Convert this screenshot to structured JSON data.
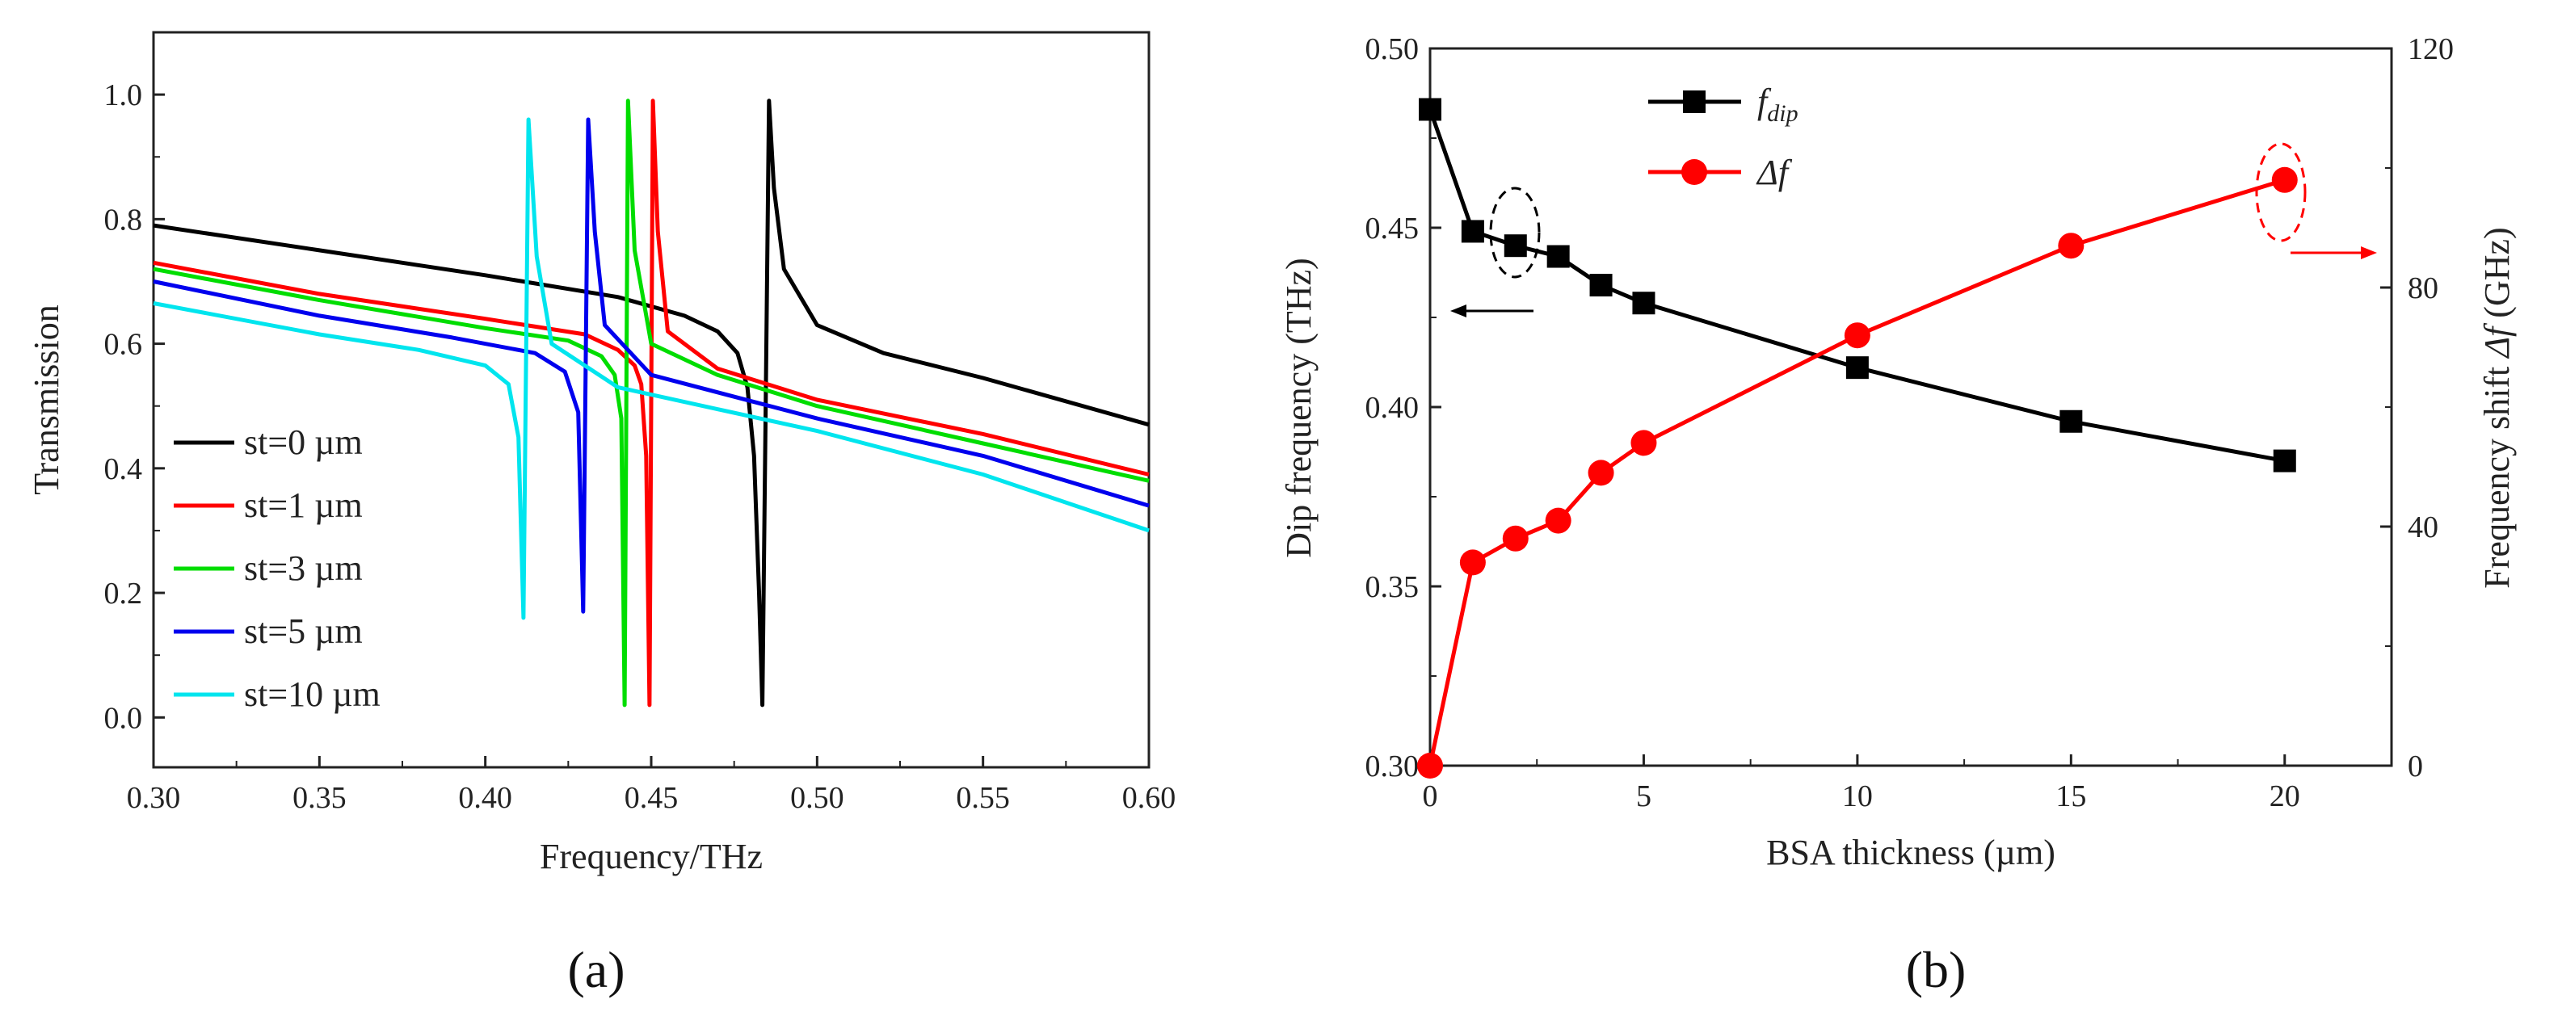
{
  "chart_data": [
    {
      "type": "line",
      "panel_label": "(a)",
      "title": "",
      "xlabel": "Frequency/THz",
      "ylabel": "Transmission",
      "xlim": [
        0.3,
        0.6
      ],
      "ylim": [
        -0.08,
        1.1
      ],
      "x_ticks": [
        "0.30",
        "0.35",
        "0.40",
        "0.45",
        "0.50",
        "0.55",
        "0.60"
      ],
      "y_ticks": [
        "0.0",
        "0.2",
        "0.4",
        "0.6",
        "0.8",
        "1.0"
      ],
      "grid": false,
      "legend_position": "bottom-left",
      "series": [
        {
          "name": "st=0 µm",
          "color": "#000000",
          "points": [
            [
              0.3,
              0.79
            ],
            [
              0.35,
              0.75
            ],
            [
              0.4,
              0.71
            ],
            [
              0.44,
              0.675
            ],
            [
              0.46,
              0.645
            ],
            [
              0.47,
              0.62
            ],
            [
              0.476,
              0.585
            ],
            [
              0.479,
              0.53
            ],
            [
              0.481,
              0.42
            ],
            [
              0.4825,
              0.2
            ],
            [
              0.4835,
              0.02
            ],
            [
              0.4845,
              0.5
            ],
            [
              0.4855,
              0.99
            ],
            [
              0.487,
              0.85
            ],
            [
              0.49,
              0.72
            ],
            [
              0.5,
              0.63
            ],
            [
              0.52,
              0.585
            ],
            [
              0.55,
              0.545
            ],
            [
              0.6,
              0.47
            ]
          ]
        },
        {
          "name": "st=1 µm",
          "color": "#ff0000",
          "points": [
            [
              0.3,
              0.73
            ],
            [
              0.35,
              0.68
            ],
            [
              0.4,
              0.64
            ],
            [
              0.43,
              0.615
            ],
            [
              0.44,
              0.59
            ],
            [
              0.445,
              0.565
            ],
            [
              0.447,
              0.535
            ],
            [
              0.4485,
              0.42
            ],
            [
              0.4495,
              0.02
            ],
            [
              0.4505,
              0.99
            ],
            [
              0.452,
              0.78
            ],
            [
              0.455,
              0.62
            ],
            [
              0.47,
              0.56
            ],
            [
              0.5,
              0.51
            ],
            [
              0.55,
              0.455
            ],
            [
              0.6,
              0.39
            ]
          ]
        },
        {
          "name": "st=3 µm",
          "color": "#00dd00",
          "points": [
            [
              0.3,
              0.72
            ],
            [
              0.35,
              0.67
            ],
            [
              0.4,
              0.625
            ],
            [
              0.425,
              0.605
            ],
            [
              0.435,
              0.58
            ],
            [
              0.439,
              0.55
            ],
            [
              0.441,
              0.48
            ],
            [
              0.442,
              0.02
            ],
            [
              0.443,
              0.99
            ],
            [
              0.445,
              0.75
            ],
            [
              0.45,
              0.6
            ],
            [
              0.47,
              0.55
            ],
            [
              0.5,
              0.5
            ],
            [
              0.55,
              0.44
            ],
            [
              0.6,
              0.38
            ]
          ]
        },
        {
          "name": "st=5 µm",
          "color": "#0000ee",
          "points": [
            [
              0.3,
              0.7
            ],
            [
              0.35,
              0.645
            ],
            [
              0.39,
              0.61
            ],
            [
              0.415,
              0.585
            ],
            [
              0.424,
              0.555
            ],
            [
              0.428,
              0.49
            ],
            [
              0.4295,
              0.17
            ],
            [
              0.431,
              0.96
            ],
            [
              0.433,
              0.78
            ],
            [
              0.436,
              0.63
            ],
            [
              0.45,
              0.55
            ],
            [
              0.5,
              0.48
            ],
            [
              0.55,
              0.42
            ],
            [
              0.6,
              0.34
            ]
          ]
        },
        {
          "name": "st=10 µm",
          "color": "#00e5ee",
          "points": [
            [
              0.3,
              0.665
            ],
            [
              0.35,
              0.615
            ],
            [
              0.38,
              0.59
            ],
            [
              0.4,
              0.565
            ],
            [
              0.407,
              0.535
            ],
            [
              0.41,
              0.45
            ],
            [
              0.4115,
              0.16
            ],
            [
              0.413,
              0.96
            ],
            [
              0.4155,
              0.74
            ],
            [
              0.42,
              0.6
            ],
            [
              0.44,
              0.53
            ],
            [
              0.5,
              0.46
            ],
            [
              0.55,
              0.39
            ],
            [
              0.6,
              0.3
            ]
          ]
        }
      ]
    },
    {
      "type": "line",
      "panel_label": "(b)",
      "title": "",
      "xlabel": "BSA thickness (µm)",
      "ylabel": "Dip frequency (THz)",
      "y2label_prefix": "Frequency shift ",
      "y2label_symbol": "Δf",
      "y2label_unit": " (GHz)",
      "xlim": [
        0,
        22.5
      ],
      "ylim": [
        0.3,
        0.5
      ],
      "y2lim": [
        0,
        120
      ],
      "x_ticks": [
        "0",
        "5",
        "10",
        "15",
        "20"
      ],
      "y_ticks": [
        "0.30",
        "0.35",
        "0.40",
        "0.45",
        "0.50"
      ],
      "y2_ticks": [
        "0",
        "40",
        "80",
        "120"
      ],
      "grid": false,
      "legend_position": "top-left",
      "series": [
        {
          "name_main": "f",
          "name_sub": "dip",
          "color": "#000000",
          "marker": "square",
          "axis": "left",
          "x": [
            0,
            1,
            2,
            3,
            4,
            5,
            10,
            15,
            20
          ],
          "y": [
            0.483,
            0.449,
            0.445,
            0.442,
            0.434,
            0.429,
            0.411,
            0.396,
            0.385
          ]
        },
        {
          "name": "Δf",
          "color": "#ff0000",
          "marker": "circle",
          "axis": "right",
          "x": [
            0,
            1,
            2,
            3,
            4,
            5,
            10,
            15,
            20
          ],
          "y": [
            0,
            34,
            38,
            41,
            49,
            54,
            72,
            87,
            98
          ]
        }
      ]
    }
  ]
}
